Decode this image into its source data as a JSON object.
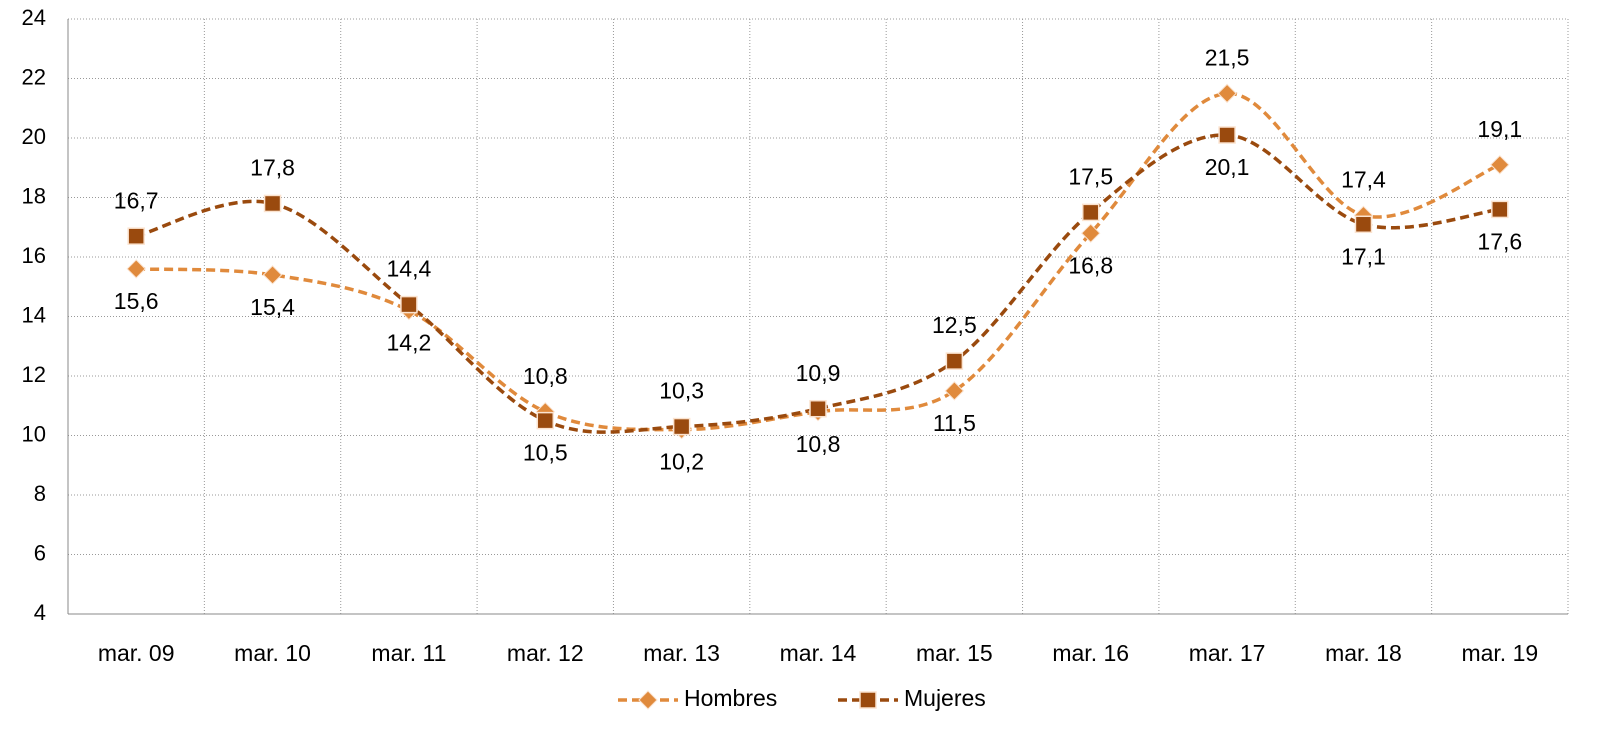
{
  "chart_data": {
    "type": "line",
    "categories": [
      "mar. 09",
      "mar. 10",
      "mar. 11",
      "mar. 12",
      "mar. 13",
      "mar. 14",
      "mar. 15",
      "mar. 16",
      "mar. 17",
      "mar. 18",
      "mar. 19"
    ],
    "series": [
      {
        "name": "Hombres",
        "color": "#e08a3c",
        "marker": "diamond",
        "values": [
          15.6,
          15.4,
          14.2,
          10.8,
          10.2,
          10.8,
          11.5,
          16.8,
          21.5,
          17.4,
          19.1
        ],
        "value_labels": [
          "15,6",
          "15,4",
          "14,2",
          "10,8",
          "10,2",
          "10,8",
          "11,5",
          "16,8",
          "21,5",
          "17,4",
          "19,1"
        ]
      },
      {
        "name": "Mujeres",
        "color": "#9a4a0e",
        "marker": "square",
        "values": [
          16.7,
          17.8,
          14.4,
          10.5,
          10.3,
          10.9,
          12.5,
          17.5,
          20.1,
          17.1,
          17.6
        ],
        "value_labels": [
          "16,7",
          "17,8",
          "14,4",
          "10,5",
          "10,3",
          "10,9",
          "12,5",
          "17,5",
          "20,1",
          "17,1",
          "17,6"
        ]
      }
    ],
    "ylim": [
      4,
      24
    ],
    "yticks": [
      4,
      6,
      8,
      10,
      12,
      14,
      16,
      18,
      20,
      22,
      24
    ],
    "grid": true,
    "legend": "bottom"
  }
}
